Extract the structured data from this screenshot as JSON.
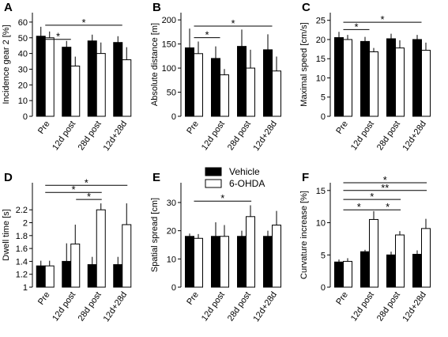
{
  "chart_data": [
    {
      "type": "bar",
      "panel_letter": "A",
      "ylabel": "Incidence gear 2 [%]",
      "categories": [
        "Pre",
        "12d post",
        "28d post",
        "12d+28d"
      ],
      "series": [
        {
          "name": "Vehicle",
          "values": [
            51,
            44,
            48,
            47
          ],
          "errors": [
            6,
            4,
            4,
            4
          ]
        },
        {
          "name": "6-OHDA",
          "values": [
            50,
            32,
            40,
            36
          ],
          "errors": [
            4,
            6,
            7,
            8
          ]
        }
      ],
      "yticks": [
        0,
        10,
        20,
        30,
        40,
        50,
        60
      ],
      "ylim": [
        0,
        66
      ],
      "significance": [
        {
          "from": 0,
          "to": 1,
          "label": "*",
          "y": 49
        },
        {
          "from": 0,
          "to": 3,
          "label": "*",
          "y": 58
        }
      ]
    },
    {
      "type": "bar",
      "panel_letter": "B",
      "ylabel": "Absolute distance [m]",
      "categories": [
        "Pre",
        "12d post",
        "28d post",
        "12d+28d"
      ],
      "series": [
        {
          "name": "Vehicle",
          "values": [
            142,
            120,
            145,
            138
          ],
          "errors": [
            40,
            25,
            35,
            32
          ]
        },
        {
          "name": "6-OHDA",
          "values": [
            130,
            86,
            100,
            94
          ],
          "errors": [
            25,
            12,
            38,
            30
          ]
        }
      ],
      "yticks": [
        0,
        50,
        100,
        150,
        200
      ],
      "ylim": [
        0,
        215
      ],
      "significance": [
        {
          "from": 0,
          "to": 1,
          "label": "*",
          "y": 163
        },
        {
          "from": 0,
          "to": 3,
          "label": "*",
          "y": 187
        }
      ]
    },
    {
      "type": "bar",
      "panel_letter": "C",
      "ylabel": "Maximal speed [cm/s]",
      "categories": [
        "Pre",
        "12d post",
        "28d post",
        "12d+28d"
      ],
      "series": [
        {
          "name": "Vehicle",
          "values": [
            20.5,
            19.5,
            20.2,
            20.0
          ],
          "errors": [
            1.5,
            1.2,
            1.3,
            1.2
          ]
        },
        {
          "name": "6-OHDA",
          "values": [
            20.0,
            16.8,
            17.8,
            17.2
          ],
          "errors": [
            1.2,
            1.0,
            2.0,
            2.0
          ]
        }
      ],
      "yticks": [
        0,
        5,
        10,
        15,
        20,
        25
      ],
      "ylim": [
        0,
        27
      ],
      "significance": [
        {
          "from": 0,
          "to": 1,
          "label": "*",
          "y": 22.6
        },
        {
          "from": 0,
          "to": 3,
          "label": "*",
          "y": 24.5
        }
      ]
    },
    {
      "type": "bar",
      "panel_letter": "D",
      "ylabel": "Dwell time [s]",
      "categories": [
        "Pre",
        "12d post",
        "28d post",
        "12d+28d"
      ],
      "series": [
        {
          "name": "Vehicle",
          "values": [
            1.33,
            1.4,
            1.35,
            1.35
          ],
          "errors": [
            0.08,
            0.28,
            0.12,
            0.12
          ]
        },
        {
          "name": "6-OHDA",
          "values": [
            1.33,
            1.67,
            2.2,
            1.97
          ],
          "errors": [
            0.08,
            0.3,
            0.1,
            0.33
          ]
        }
      ],
      "yticks": [
        1,
        1.2,
        1.4,
        1.6,
        1.8,
        2,
        2.2
      ],
      "ylim": [
        1,
        2.62
      ],
      "significance": [
        {
          "from": 1.2,
          "to": 2.2,
          "label": "*",
          "y": 2.36
        },
        {
          "from": 0,
          "to": 2.2,
          "label": "*",
          "y": 2.47
        },
        {
          "from": 0,
          "to": 3.2,
          "label": "*",
          "y": 2.58
        }
      ]
    },
    {
      "type": "bar",
      "panel_letter": "E",
      "ylabel": "Spatial spread [cm]",
      "categories": [
        "Pre",
        "12d post",
        "28d post",
        "12d+28d"
      ],
      "series": [
        {
          "name": "Vehicle",
          "values": [
            18,
            18,
            18,
            18
          ],
          "errors": [
            1,
            5,
            2,
            2
          ]
        },
        {
          "name": "6-OHDA",
          "values": [
            17.3,
            18,
            25,
            22
          ],
          "errors": [
            1.5,
            4,
            4,
            5
          ]
        }
      ],
      "yticks": [
        0,
        10,
        20,
        30
      ],
      "ylim": [
        0,
        37
      ],
      "significance": [
        {
          "from": 0,
          "to": 2.2,
          "label": "*",
          "y": 30.5
        }
      ]
    },
    {
      "type": "bar",
      "panel_letter": "F",
      "ylabel": "Curvature increase [%]",
      "categories": [
        "Pre",
        "12d post",
        "28d post",
        "12d+28d"
      ],
      "series": [
        {
          "name": "Vehicle",
          "values": [
            3.9,
            5.5,
            5.0,
            5.1
          ],
          "errors": [
            0.4,
            0.3,
            0.5,
            0.6
          ]
        },
        {
          "name": "6-OHDA",
          "values": [
            4.0,
            10.5,
            8.1,
            9.1
          ],
          "errors": [
            0.5,
            1.3,
            0.6,
            1.5
          ]
        }
      ],
      "yticks": [
        0,
        5,
        10,
        15
      ],
      "ylim": [
        0,
        16.2
      ],
      "significance": [
        {
          "from": 0,
          "to": 1.2,
          "label": "*",
          "y": 12.0
        },
        {
          "from": 1.2,
          "to": 2.2,
          "label": "*",
          "y": 12.0
        },
        {
          "from": 0,
          "to": 2.2,
          "label": "*",
          "y": 13.6
        },
        {
          "from": 0,
          "to": 3.2,
          "label": "**",
          "y": 15.0
        },
        {
          "from": 0,
          "to": 3.2,
          "label": "*",
          "y": 16.2
        }
      ]
    }
  ],
  "legend": [
    {
      "label": "Vehicle",
      "fill": "#000000"
    },
    {
      "label": "6-OHDA",
      "fill": "#ffffff"
    }
  ],
  "colors": {
    "vehicle": "#000000",
    "ohda": "#ffffff",
    "ink": "#000000"
  }
}
